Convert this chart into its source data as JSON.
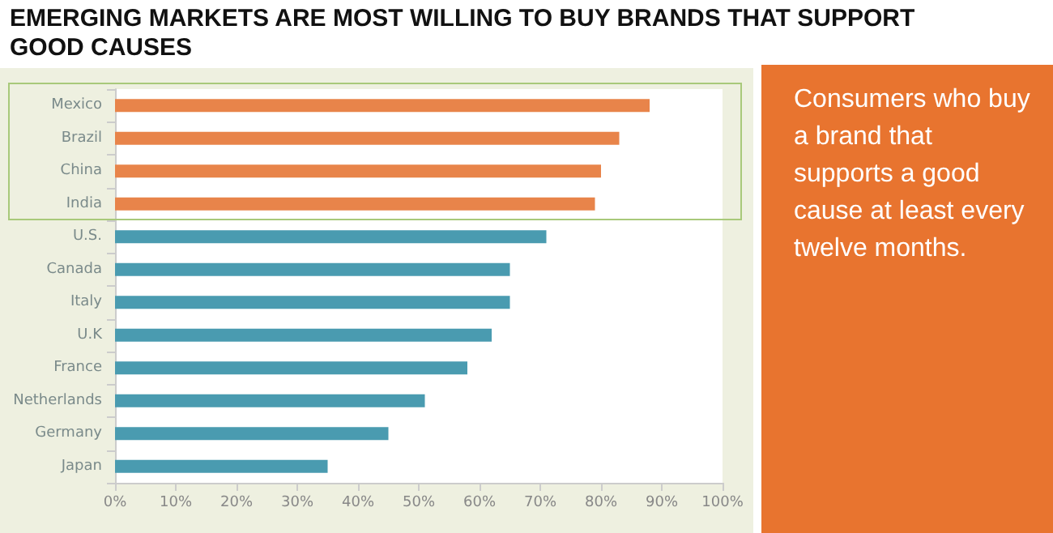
{
  "chart_data": {
    "type": "bar",
    "orientation": "horizontal",
    "title": "EMERGING MARKETS ARE MOST WILLING TO BUY BRANDS THAT SUPPORT GOOD CAUSES",
    "categories": [
      "Mexico",
      "Brazil",
      "China",
      "India",
      "U.S.",
      "Canada",
      "Italy",
      "U.K",
      "France",
      "Netherlands",
      "Germany",
      "Japan"
    ],
    "values": [
      88,
      83,
      80,
      79,
      71,
      65,
      65,
      62,
      58,
      51,
      45,
      35
    ],
    "colors": [
      "#e8844a",
      "#e8844a",
      "#e8844a",
      "#e8844a",
      "#4a9bb0",
      "#4a9bb0",
      "#4a9bb0",
      "#4a9bb0",
      "#4a9bb0",
      "#4a9bb0",
      "#4a9bb0",
      "#4a9bb0"
    ],
    "xlim": [
      0,
      100
    ],
    "xticks": [
      {
        "value": 0,
        "label": "0%"
      },
      {
        "value": 10,
        "label": "10%"
      },
      {
        "value": 20,
        "label": "20%"
      },
      {
        "value": 30,
        "label": "30%"
      },
      {
        "value": 40,
        "label": "40%"
      },
      {
        "value": 50,
        "label": "50%"
      },
      {
        "value": 60,
        "label": "60%"
      },
      {
        "value": 70,
        "label": "70%"
      },
      {
        "value": 80,
        "label": "80%"
      },
      {
        "value": 90,
        "label": "90%"
      },
      {
        "value": 100,
        "label": "100%"
      }
    ],
    "annotations": [
      "Consumers who buy a brand that supports a good cause at least every twelve months."
    ],
    "grid": false
  }
}
